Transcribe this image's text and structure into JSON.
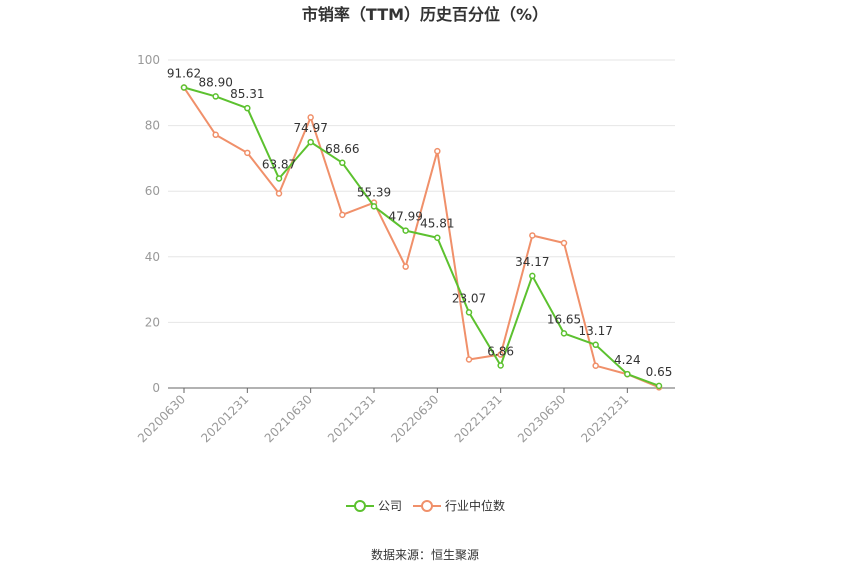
{
  "chart_data": {
    "type": "line",
    "title": "市销率（TTM）历史百分位（%）",
    "x": [
      "20200630",
      "20200930",
      "20201231",
      "20210331",
      "20210630",
      "20210930",
      "20211231",
      "20220331",
      "20220630",
      "20220930",
      "20221231",
      "20230331",
      "20230630",
      "20230930",
      "20231231",
      "20240331"
    ],
    "x_tick_labels": [
      "20200630",
      "20201231",
      "20210630",
      "20211231",
      "20220630",
      "20221231",
      "20230630",
      "20231231"
    ],
    "ylim": [
      0,
      100
    ],
    "y_ticks": [
      0,
      20,
      40,
      60,
      80,
      100
    ],
    "grid": true,
    "legend_position": "bottom-center",
    "series": [
      {
        "name": "公司",
        "color": "#5cc12f",
        "values": [
          91.62,
          88.9,
          85.31,
          63.87,
          74.97,
          68.66,
          55.39,
          47.99,
          45.81,
          23.07,
          6.86,
          34.17,
          16.65,
          13.17,
          4.24,
          0.65
        ],
        "labels": [
          "91.62",
          "88.90",
          "85.31",
          "63.87",
          "74.97",
          "68.66",
          "55.39",
          "47.99",
          "45.81",
          "23.07",
          "6.86",
          "34.17",
          "16.65",
          "13.17",
          "4.24",
          "0.65"
        ]
      },
      {
        "name": "行业中位数",
        "color": "#f0906a",
        "values": [
          91.6,
          77.2,
          71.7,
          59.3,
          82.5,
          52.8,
          56.5,
          37.0,
          72.2,
          8.7,
          10.2,
          46.5,
          44.2,
          6.8,
          4.2,
          0.2
        ]
      }
    ],
    "source": "数据来源：恒生聚源"
  }
}
